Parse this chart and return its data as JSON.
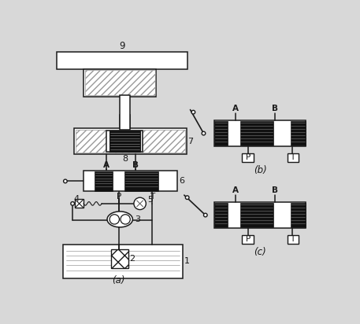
{
  "bg_color": "#d8d8d8",
  "line_color": "#1a1a1a",
  "dark_fill": "#111111",
  "white_fill": "#ffffff",
  "gray_fill": "#777777",
  "light_gray": "#aaaaaa",
  "fig_w": 4.57,
  "fig_h": 4.12,
  "dpi": 100,
  "labels": {
    "num1": "1",
    "num2": "2",
    "num3": "3",
    "num4": "4",
    "num5": "5",
    "num6": "6",
    "num7": "7",
    "num8": "8",
    "num9": "9",
    "A": "A",
    "B": "B",
    "P": "P",
    "T": "T",
    "a": "(a)",
    "b": "(b)",
    "c": "(c)"
  }
}
